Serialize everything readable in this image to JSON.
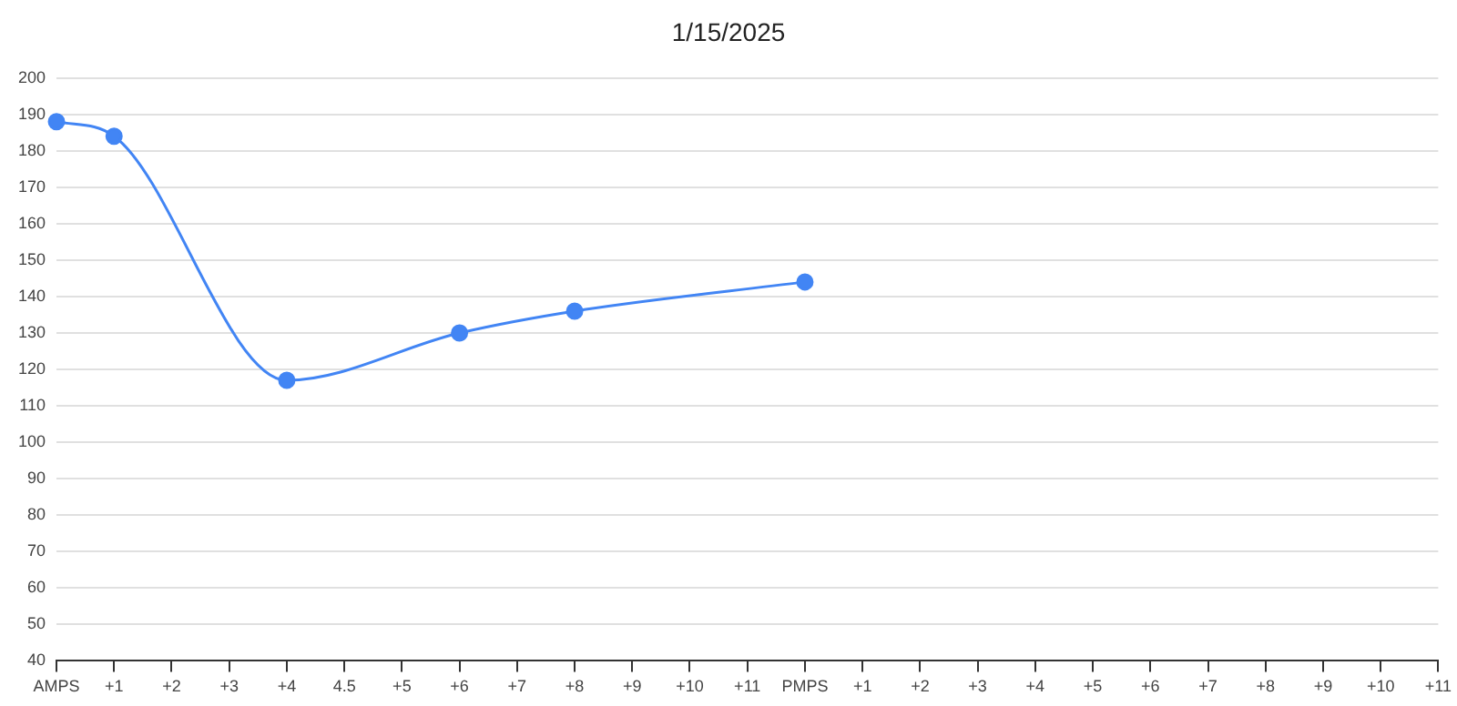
{
  "chart_data": {
    "type": "line",
    "title": "1/15/2025",
    "categories": [
      "AMPS",
      "+1",
      "+2",
      "+3",
      "+4",
      "4.5",
      "+5",
      "+6",
      "+7",
      "+8",
      "+9",
      "+10",
      "+11",
      "PMPS",
      "+1",
      "+2",
      "+3",
      "+4",
      "+5",
      "+6",
      "+7",
      "+8",
      "+9",
      "+10",
      "+11"
    ],
    "series": [
      {
        "color": "#4285f4",
        "values": [
          188,
          184,
          null,
          null,
          117,
          null,
          null,
          130,
          null,
          136,
          null,
          null,
          null,
          144,
          null,
          null,
          null,
          null,
          null,
          null,
          null,
          null,
          null,
          null,
          null
        ]
      }
    ],
    "ylim": [
      40,
      200
    ],
    "yticks": [
      40,
      50,
      60,
      70,
      80,
      90,
      100,
      110,
      120,
      130,
      140,
      150,
      160,
      170,
      180,
      190,
      200
    ],
    "grid": "y",
    "legend": false,
    "marker": "circle",
    "line_style": "solid"
  }
}
